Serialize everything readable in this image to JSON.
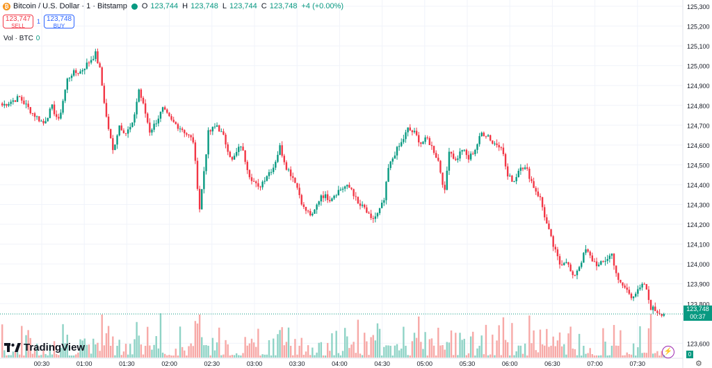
{
  "header": {
    "coin_glyph": "₿",
    "symbol": "Bitcoin / U.S. Dollar · 1 · Bitstamp",
    "ohlc": [
      {
        "label": "O",
        "value": "123,744"
      },
      {
        "label": "H",
        "value": "123,748"
      },
      {
        "label": "L",
        "value": "123,744"
      },
      {
        "label": "C",
        "value": "123,748"
      }
    ],
    "change": "+4 (+0.00%)"
  },
  "trade": {
    "sell_price": "123,747",
    "sell_label": "SELL",
    "spread": "1",
    "buy_price": "123,748",
    "buy_label": "BUY"
  },
  "volume_legend": {
    "label": "Vol · BTC",
    "value": "0"
  },
  "branding": {
    "name": "TradingView"
  },
  "price_tag": {
    "price": "123,748",
    "countdown": "00:37"
  },
  "volume_tag": "0",
  "colors": {
    "up": "#089981",
    "down": "#f23645",
    "up_vol": "#8fd3c6",
    "down_vol": "#f7a9a7",
    "grid": "#f0f3fa"
  },
  "chart_data": {
    "type": "candlestick",
    "y_tick_labels": [
      "125,300",
      "125,200",
      "125,100",
      "125,000",
      "124,900",
      "124,800",
      "124,700",
      "124,600",
      "124,500",
      "124,400",
      "124,300",
      "124,200",
      "124,100",
      "124,000",
      "123,900",
      "123,800",
      "123,600"
    ],
    "x_tick_labels": [
      "00:30",
      "01:00",
      "01:30",
      "02:00",
      "02:30",
      "03:00",
      "03:30",
      "04:00",
      "04:30",
      "05:00",
      "05:30",
      "06:00",
      "06:30",
      "07:00",
      "07:30"
    ],
    "ylim": [
      123560,
      125310
    ],
    "last_price": 123748,
    "anchors": [
      [
        0,
        124800
      ],
      [
        8,
        124840
      ],
      [
        14,
        124760
      ],
      [
        19,
        124710
      ],
      [
        23,
        124790
      ],
      [
        26,
        124720
      ],
      [
        30,
        124930
      ],
      [
        32,
        124960
      ],
      [
        36,
        124970
      ],
      [
        40,
        125020
      ],
      [
        43,
        125060
      ],
      [
        45,
        124980
      ],
      [
        48,
        124740
      ],
      [
        51,
        124570
      ],
      [
        54,
        124700
      ],
      [
        57,
        124660
      ],
      [
        60,
        124700
      ],
      [
        63,
        124880
      ],
      [
        66,
        124760
      ],
      [
        68,
        124670
      ],
      [
        70,
        124700
      ],
      [
        74,
        124780
      ],
      [
        78,
        124720
      ],
      [
        83,
        124680
      ],
      [
        88,
        124620
      ],
      [
        91,
        124280
      ],
      [
        95,
        124660
      ],
      [
        99,
        124700
      ],
      [
        102,
        124640
      ],
      [
        106,
        124520
      ],
      [
        110,
        124600
      ],
      [
        114,
        124450
      ],
      [
        118,
        124380
      ],
      [
        122,
        124450
      ],
      [
        125,
        124490
      ],
      [
        128,
        124590
      ],
      [
        131,
        124490
      ],
      [
        135,
        124420
      ],
      [
        139,
        124280
      ],
      [
        143,
        124240
      ],
      [
        147,
        124350
      ],
      [
        151,
        124330
      ],
      [
        155,
        124370
      ],
      [
        158,
        124390
      ],
      [
        161,
        124380
      ],
      [
        164,
        124300
      ],
      [
        167,
        124280
      ],
      [
        170,
        124220
      ],
      [
        173,
        124250
      ],
      [
        176,
        124320
      ],
      [
        178,
        124480
      ],
      [
        181,
        124560
      ],
      [
        184,
        124610
      ],
      [
        187,
        124680
      ],
      [
        190,
        124660
      ],
      [
        193,
        124610
      ],
      [
        196,
        124630
      ],
      [
        199,
        124570
      ],
      [
        201,
        124520
      ],
      [
        204,
        124360
      ],
      [
        206,
        124580
      ],
      [
        209,
        124520
      ],
      [
        212,
        124580
      ],
      [
        215,
        124530
      ],
      [
        218,
        124580
      ],
      [
        221,
        124660
      ],
      [
        224,
        124650
      ],
      [
        226,
        124610
      ],
      [
        230,
        124600
      ],
      [
        233,
        124440
      ],
      [
        236,
        124420
      ],
      [
        239,
        124500
      ],
      [
        242,
        124470
      ],
      [
        245,
        124390
      ],
      [
        248,
        124330
      ],
      [
        251,
        124200
      ],
      [
        254,
        124090
      ],
      [
        257,
        124000
      ],
      [
        260,
        124020
      ],
      [
        263,
        123930
      ],
      [
        266,
        123990
      ],
      [
        269,
        124070
      ],
      [
        272,
        124020
      ],
      [
        275,
        123990
      ],
      [
        278,
        124020
      ],
      [
        281,
        124050
      ],
      [
        284,
        123910
      ],
      [
        287,
        123880
      ],
      [
        290,
        123840
      ],
      [
        293,
        123860
      ],
      [
        296,
        123900
      ],
      [
        299,
        123780
      ],
      [
        302,
        123760
      ],
      [
        305,
        123748
      ]
    ]
  }
}
